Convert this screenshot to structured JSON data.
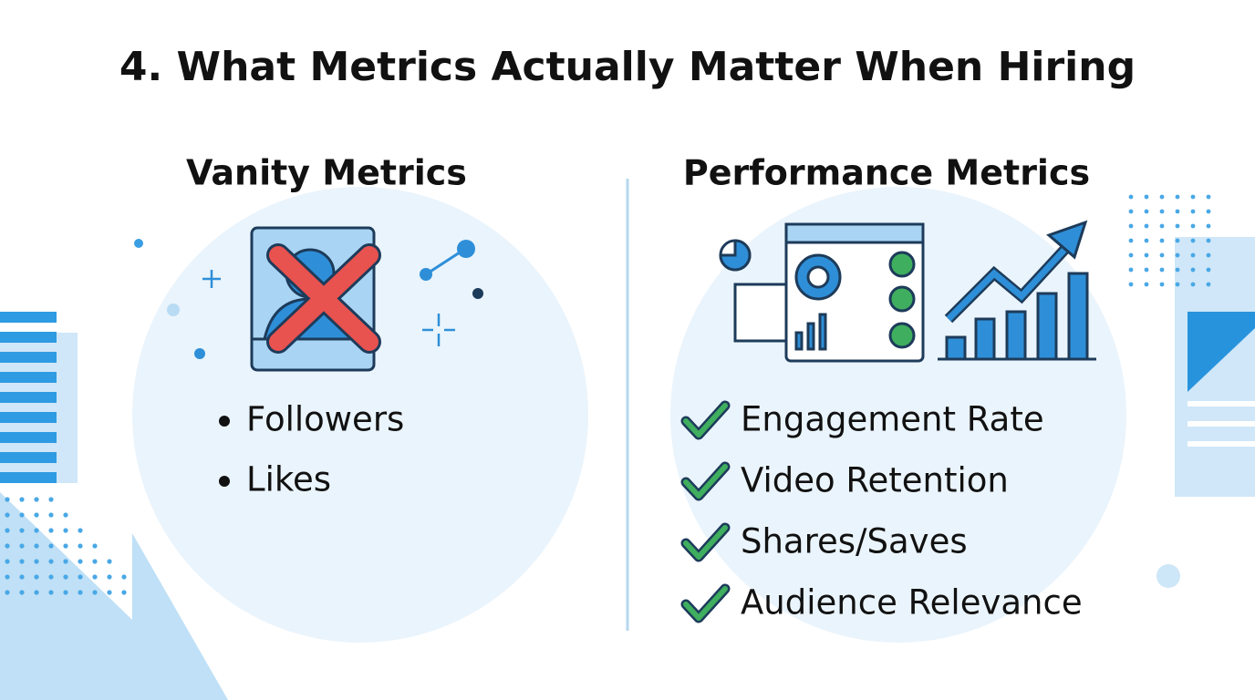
{
  "title": "4. What Metrics Actually Matter When Hiring",
  "vanity": {
    "heading": "Vanity Metrics",
    "items": [
      "Followers",
      "Likes"
    ]
  },
  "performance": {
    "heading": "Performance Metrics",
    "items": [
      "Engagement Rate",
      "Video Retention",
      "Shares/Saves",
      "Audience Relevance"
    ]
  }
}
